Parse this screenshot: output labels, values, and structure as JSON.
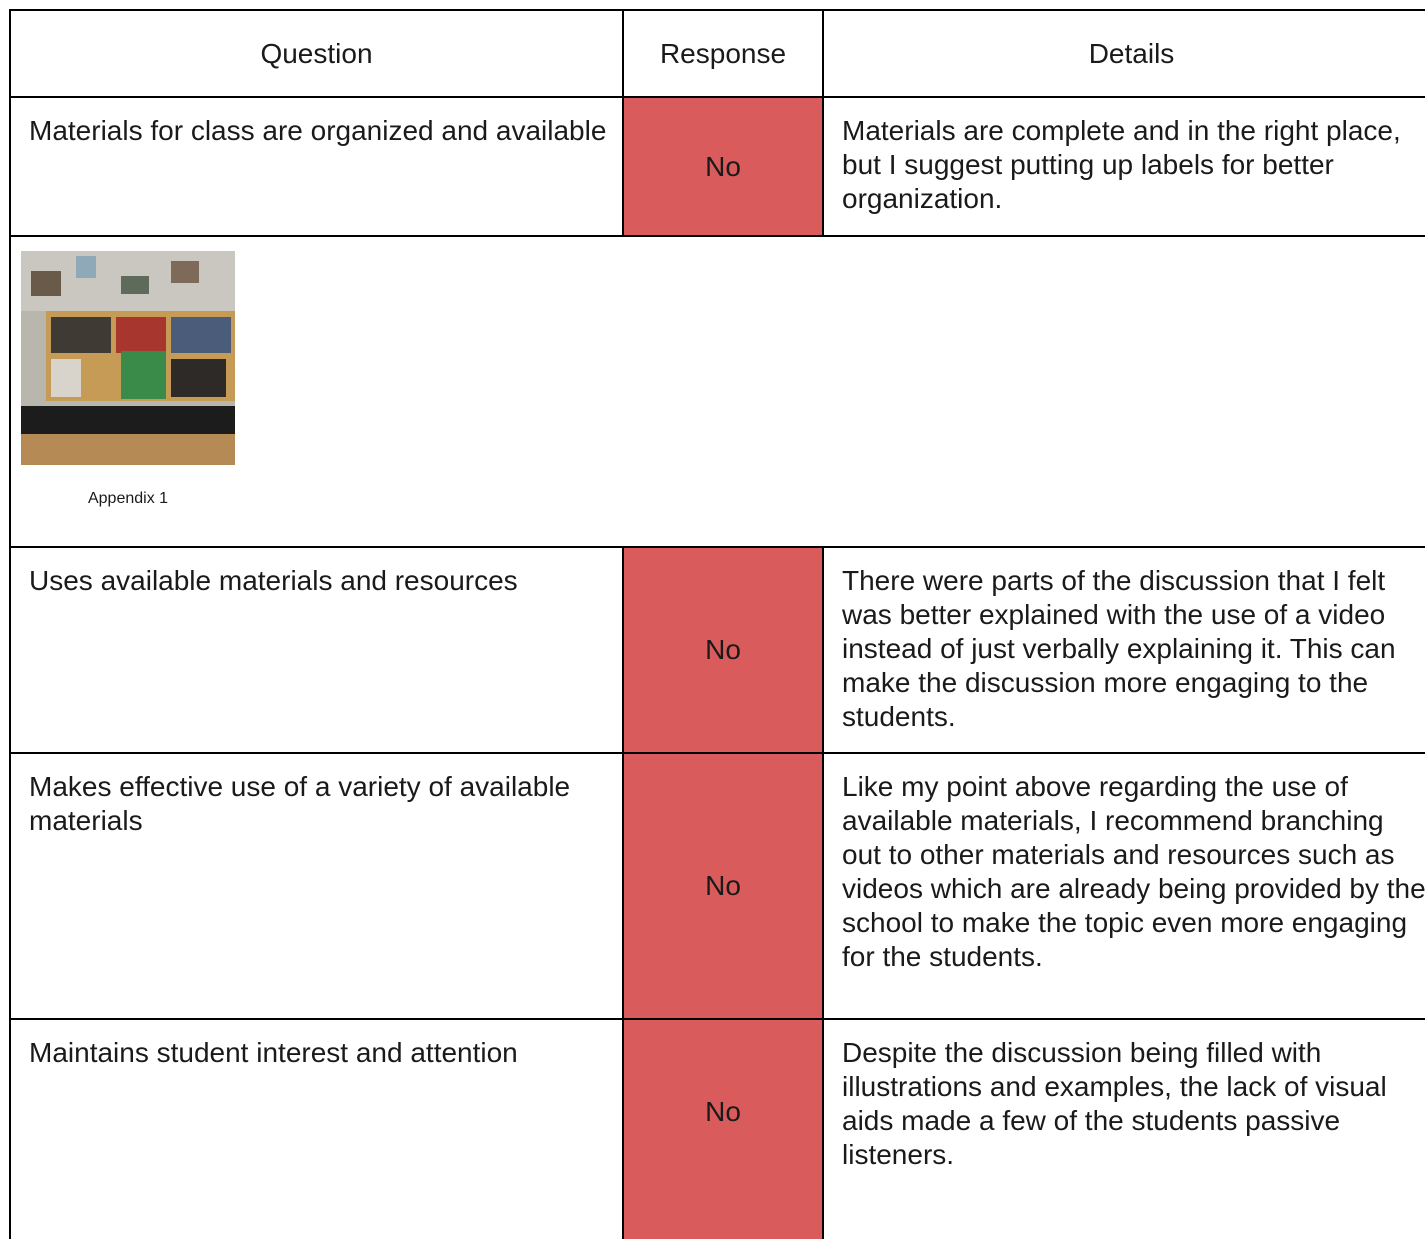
{
  "table": {
    "headers": [
      "Question",
      "Response",
      "Details"
    ],
    "rows": [
      {
        "question": "Materials for class are organized and available",
        "response": "No",
        "details": "Materials are complete and in the right place, but I suggest putting up labels for better organization."
      },
      {
        "image_caption": "Appendix 1"
      },
      {
        "question": "Uses available materials and resources",
        "response": "No",
        "details": "There were parts of the discussion that I felt was better explained with the use of a video instead of just verbally explaining it. This can make the discussion more engaging to the students."
      },
      {
        "question": "Makes effective use of a variety of available materials",
        "response": "No",
        "details": "Like my point above regarding the use of available materials, I recommend branching out to other materials and resources such as videos which are already being provided by the school to make the topic even more engaging for the students."
      },
      {
        "question": "Maintains student interest and attention",
        "response": "No",
        "details": "Despite the discussion being filled with illustrations and examples, the lack of visual aids made a few of the students passive listeners."
      }
    ]
  }
}
